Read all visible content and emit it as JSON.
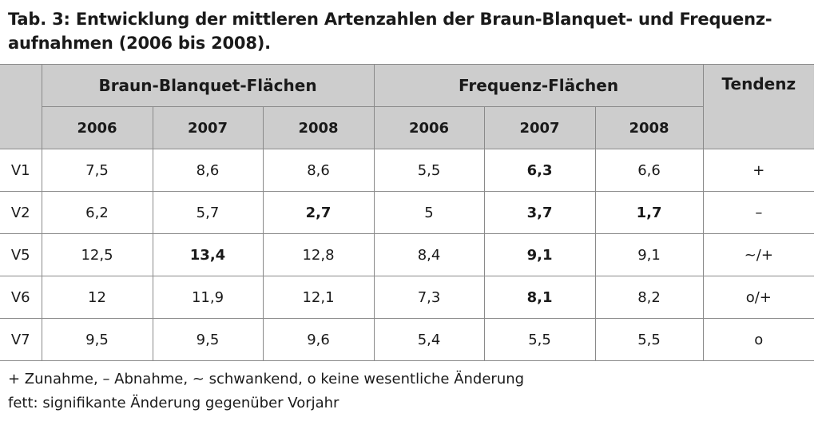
{
  "title": {
    "line1": "Tab. 3: Entwicklung der mittleren Artenzahlen der Braun-Blanquet- und Frequenz-",
    "line2": "aufnahmen (2006 bis 2008)."
  },
  "table": {
    "group_headers": {
      "braun": "Braun-Blanquet-Flächen",
      "frequenz": "Frequenz-Flächen",
      "tendenz": "Tendenz"
    },
    "years": [
      "2006",
      "2007",
      "2008",
      "2006",
      "2007",
      "2008"
    ],
    "rows": [
      {
        "label": "V1",
        "values": [
          "7,5",
          "8,6",
          "8,6",
          "5,5",
          "6,3",
          "6,6"
        ],
        "tendenz": "+"
      },
      {
        "label": "V2",
        "values": [
          "6,2",
          "5,7",
          "2,7",
          "5",
          "3,7",
          "1,7"
        ],
        "tendenz": "–"
      },
      {
        "label": "V5",
        "values": [
          "12,5",
          "13,4",
          "12,8",
          "8,4",
          "9,1",
          "9,1"
        ],
        "tendenz": "~/+"
      },
      {
        "label": "V6",
        "values": [
          "12",
          "11,9",
          "12,1",
          "7,3",
          "8,1",
          "8,2"
        ],
        "tendenz": "o/+"
      },
      {
        "label": "V7",
        "values": [
          "9,5",
          "9,5",
          "9,6",
          "5,4",
          "5,5",
          "5,5"
        ],
        "tendenz": "o"
      }
    ]
  },
  "notes": {
    "legend": "+ Zunahme, – Abnahme, ~ schwankend, o keine wesentliche Änderung",
    "bold_note": "fett: signifikante Änderung gegenüber Vorjahr"
  },
  "colors": {
    "header_background": "#cdcdcd",
    "border": "#8a8a8a",
    "text": "#1a1a1a"
  }
}
